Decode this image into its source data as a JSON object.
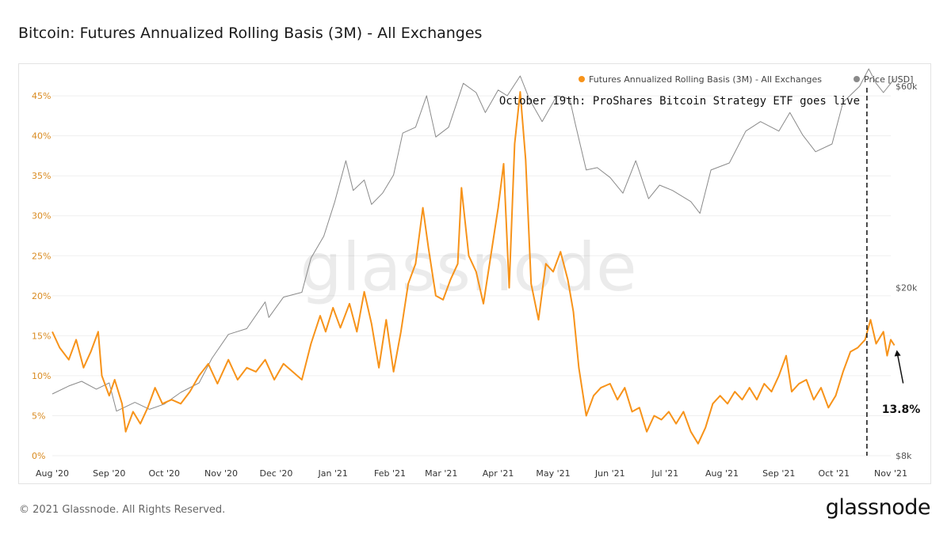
{
  "title": "Bitcoin: Futures Annualized Rolling Basis (3M) - All Exchanges",
  "footer": {
    "copyright": "© 2021 Glassnode. All Rights Reserved.",
    "logo": "glassnode"
  },
  "watermark": "glassnode",
  "colors": {
    "basis": "#f7931a",
    "price": "#8a8a8a",
    "left_axis": "#d98a1f",
    "right_axis": "#555555"
  },
  "chart_data": {
    "type": "line",
    "title": "Bitcoin: Futures Annualized Rolling Basis (3M) - All Exchanges",
    "legend": [
      "Futures Annualized Rolling Basis (3M) - All Exchanges",
      "Price [USD]"
    ],
    "legend_position": "top-right",
    "x_range": [
      "2020-08-01",
      "2021-11-01"
    ],
    "x_tick_labels": [
      "Aug '20",
      "Sep '20",
      "Oct '20",
      "Nov '20",
      "Dec '20",
      "Jan '21",
      "Feb '21",
      "Mar '21",
      "Apr '21",
      "May '21",
      "Jun '21",
      "Jul '21",
      "Aug '21",
      "Sep '21",
      "Oct '21",
      "Nov '21"
    ],
    "y_left": {
      "label": "",
      "ticks": [
        "0%",
        "5%",
        "10%",
        "15%",
        "20%",
        "25%",
        "30%",
        "35%",
        "40%",
        "45%"
      ],
      "range": [
        0,
        46
      ]
    },
    "y_right": {
      "label": "",
      "scale": "log",
      "ticks": [
        "$8k",
        "$20k",
        "$60k"
      ]
    },
    "grid": true,
    "series": [
      {
        "name": "Futures Annualized Rolling Basis (3M) - All Exchanges",
        "axis": "left",
        "points": [
          [
            "2020-08-01",
            15.5
          ],
          [
            "2020-08-05",
            13.5
          ],
          [
            "2020-08-10",
            12.0
          ],
          [
            "2020-08-14",
            14.5
          ],
          [
            "2020-08-18",
            11.0
          ],
          [
            "2020-08-22",
            13.0
          ],
          [
            "2020-08-26",
            15.5
          ],
          [
            "2020-08-28",
            10.0
          ],
          [
            "2020-09-01",
            7.5
          ],
          [
            "2020-09-04",
            9.5
          ],
          [
            "2020-09-08",
            6.5
          ],
          [
            "2020-09-10",
            3.0
          ],
          [
            "2020-09-14",
            5.5
          ],
          [
            "2020-09-18",
            4.0
          ],
          [
            "2020-09-22",
            6.0
          ],
          [
            "2020-09-26",
            8.5
          ],
          [
            "2020-09-30",
            6.5
          ],
          [
            "2020-10-05",
            7.0
          ],
          [
            "2020-10-10",
            6.5
          ],
          [
            "2020-10-15",
            8.0
          ],
          [
            "2020-10-20",
            10.0
          ],
          [
            "2020-10-25",
            11.5
          ],
          [
            "2020-10-30",
            9.0
          ],
          [
            "2020-11-05",
            12.0
          ],
          [
            "2020-11-10",
            9.5
          ],
          [
            "2020-11-15",
            11.0
          ],
          [
            "2020-11-20",
            10.5
          ],
          [
            "2020-11-25",
            12.0
          ],
          [
            "2020-11-30",
            9.5
          ],
          [
            "2020-12-05",
            11.5
          ],
          [
            "2020-12-10",
            10.5
          ],
          [
            "2020-12-15",
            9.5
          ],
          [
            "2020-12-20",
            14.0
          ],
          [
            "2020-12-25",
            17.5
          ],
          [
            "2020-12-28",
            15.5
          ],
          [
            "2021-01-01",
            18.5
          ],
          [
            "2021-01-05",
            16.0
          ],
          [
            "2021-01-10",
            19.0
          ],
          [
            "2021-01-14",
            15.5
          ],
          [
            "2021-01-18",
            20.5
          ],
          [
            "2021-01-22",
            16.5
          ],
          [
            "2021-01-26",
            11.0
          ],
          [
            "2021-01-30",
            17.0
          ],
          [
            "2021-02-03",
            10.5
          ],
          [
            "2021-02-07",
            15.5
          ],
          [
            "2021-02-11",
            21.5
          ],
          [
            "2021-02-15",
            24.0
          ],
          [
            "2021-02-19",
            31.0
          ],
          [
            "2021-02-22",
            26.0
          ],
          [
            "2021-02-26",
            20.0
          ],
          [
            "2021-03-02",
            19.5
          ],
          [
            "2021-03-06",
            22.0
          ],
          [
            "2021-03-10",
            24.0
          ],
          [
            "2021-03-12",
            33.5
          ],
          [
            "2021-03-16",
            25.0
          ],
          [
            "2021-03-20",
            23.0
          ],
          [
            "2021-03-24",
            19.0
          ],
          [
            "2021-03-28",
            25.0
          ],
          [
            "2021-04-01",
            31.0
          ],
          [
            "2021-04-04",
            36.5
          ],
          [
            "2021-04-07",
            21.0
          ],
          [
            "2021-04-10",
            39.0
          ],
          [
            "2021-04-13",
            45.5
          ],
          [
            "2021-04-16",
            37.0
          ],
          [
            "2021-04-19",
            21.5
          ],
          [
            "2021-04-23",
            17.0
          ],
          [
            "2021-04-27",
            24.0
          ],
          [
            "2021-05-01",
            23.0
          ],
          [
            "2021-05-05",
            25.5
          ],
          [
            "2021-05-09",
            22.0
          ],
          [
            "2021-05-12",
            18.0
          ],
          [
            "2021-05-15",
            11.0
          ],
          [
            "2021-05-19",
            5.0
          ],
          [
            "2021-05-23",
            7.5
          ],
          [
            "2021-05-27",
            8.5
          ],
          [
            "2021-06-01",
            9.0
          ],
          [
            "2021-06-05",
            7.0
          ],
          [
            "2021-06-09",
            8.5
          ],
          [
            "2021-06-13",
            5.5
          ],
          [
            "2021-06-17",
            6.0
          ],
          [
            "2021-06-21",
            3.0
          ],
          [
            "2021-06-25",
            5.0
          ],
          [
            "2021-06-29",
            4.5
          ],
          [
            "2021-07-03",
            5.5
          ],
          [
            "2021-07-07",
            4.0
          ],
          [
            "2021-07-11",
            5.5
          ],
          [
            "2021-07-15",
            3.0
          ],
          [
            "2021-07-19",
            1.5
          ],
          [
            "2021-07-23",
            3.5
          ],
          [
            "2021-07-27",
            6.5
          ],
          [
            "2021-07-31",
            7.5
          ],
          [
            "2021-08-04",
            6.5
          ],
          [
            "2021-08-08",
            8.0
          ],
          [
            "2021-08-12",
            7.0
          ],
          [
            "2021-08-16",
            8.5
          ],
          [
            "2021-08-20",
            7.0
          ],
          [
            "2021-08-24",
            9.0
          ],
          [
            "2021-08-28",
            8.0
          ],
          [
            "2021-09-01",
            10.0
          ],
          [
            "2021-09-05",
            12.5
          ],
          [
            "2021-09-08",
            8.0
          ],
          [
            "2021-09-12",
            9.0
          ],
          [
            "2021-09-16",
            9.5
          ],
          [
            "2021-09-20",
            7.0
          ],
          [
            "2021-09-24",
            8.5
          ],
          [
            "2021-09-28",
            6.0
          ],
          [
            "2021-10-02",
            7.5
          ],
          [
            "2021-10-06",
            10.5
          ],
          [
            "2021-10-10",
            13.0
          ],
          [
            "2021-10-14",
            13.5
          ],
          [
            "2021-10-18",
            14.5
          ],
          [
            "2021-10-21",
            17.0
          ],
          [
            "2021-10-24",
            14.0
          ],
          [
            "2021-10-28",
            15.5
          ],
          [
            "2021-10-30",
            12.5
          ],
          [
            "2021-11-01",
            14.5
          ],
          [
            "2021-11-03",
            13.8
          ]
        ]
      },
      {
        "name": "Price [USD]",
        "axis": "right",
        "points": [
          [
            "2020-08-01",
            11200
          ],
          [
            "2020-08-10",
            11700
          ],
          [
            "2020-08-17",
            12000
          ],
          [
            "2020-08-25",
            11500
          ],
          [
            "2020-09-01",
            11900
          ],
          [
            "2020-09-05",
            10200
          ],
          [
            "2020-09-15",
            10700
          ],
          [
            "2020-09-23",
            10300
          ],
          [
            "2020-10-01",
            10600
          ],
          [
            "2020-10-10",
            11300
          ],
          [
            "2020-10-20",
            11900
          ],
          [
            "2020-10-27",
            13600
          ],
          [
            "2020-11-05",
            15500
          ],
          [
            "2020-11-15",
            16000
          ],
          [
            "2020-11-25",
            18500
          ],
          [
            "2020-11-27",
            17000
          ],
          [
            "2020-12-05",
            19000
          ],
          [
            "2020-12-15",
            19500
          ],
          [
            "2020-12-20",
            23500
          ],
          [
            "2020-12-27",
            26500
          ],
          [
            "2021-01-02",
            32000
          ],
          [
            "2021-01-08",
            40000
          ],
          [
            "2021-01-12",
            34000
          ],
          [
            "2021-01-18",
            36000
          ],
          [
            "2021-01-22",
            31500
          ],
          [
            "2021-01-28",
            33500
          ],
          [
            "2021-02-03",
            37000
          ],
          [
            "2021-02-08",
            46500
          ],
          [
            "2021-02-15",
            48000
          ],
          [
            "2021-02-21",
            57000
          ],
          [
            "2021-02-26",
            45500
          ],
          [
            "2021-03-05",
            48000
          ],
          [
            "2021-03-13",
            61000
          ],
          [
            "2021-03-20",
            58000
          ],
          [
            "2021-03-25",
            52000
          ],
          [
            "2021-04-01",
            58800
          ],
          [
            "2021-04-06",
            57000
          ],
          [
            "2021-04-13",
            63500
          ],
          [
            "2021-04-18",
            56000
          ],
          [
            "2021-04-25",
            49500
          ],
          [
            "2021-05-03",
            57000
          ],
          [
            "2021-05-10",
            56000
          ],
          [
            "2021-05-13",
            49000
          ],
          [
            "2021-05-19",
            38000
          ],
          [
            "2021-05-25",
            38500
          ],
          [
            "2021-06-01",
            36500
          ],
          [
            "2021-06-08",
            33500
          ],
          [
            "2021-06-15",
            40000
          ],
          [
            "2021-06-22",
            32500
          ],
          [
            "2021-06-28",
            35000
          ],
          [
            "2021-07-05",
            34000
          ],
          [
            "2021-07-15",
            32000
          ],
          [
            "2021-07-20",
            30000
          ],
          [
            "2021-07-26",
            38000
          ],
          [
            "2021-08-05",
            39500
          ],
          [
            "2021-08-14",
            47000
          ],
          [
            "2021-08-22",
            49500
          ],
          [
            "2021-09-01",
            47000
          ],
          [
            "2021-09-07",
            52000
          ],
          [
            "2021-09-14",
            46000
          ],
          [
            "2021-09-21",
            42000
          ],
          [
            "2021-09-30",
            43800
          ],
          [
            "2021-10-06",
            55000
          ],
          [
            "2021-10-15",
            60000
          ],
          [
            "2021-10-20",
            66000
          ],
          [
            "2021-10-24",
            61000
          ],
          [
            "2021-10-28",
            58000
          ],
          [
            "2021-11-01",
            61000
          ],
          [
            "2021-11-03",
            62500
          ]
        ]
      }
    ],
    "annotations": [
      {
        "text": "October 19th: ProShares Bitcoin Strategy ETF goes live",
        "x": "2021-10-19",
        "style": "dashed-vertical-line"
      },
      {
        "text": "13.8%",
        "x": "2021-11-03",
        "y": 13.8,
        "style": "arrow"
      }
    ]
  }
}
